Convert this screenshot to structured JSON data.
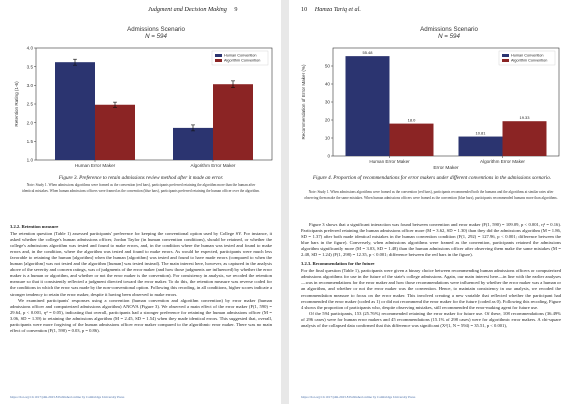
{
  "left_page": {
    "running_head": "Judgment and Decision Making",
    "page_number": "9",
    "figure_title": "Admissions Scenario",
    "figure_n": "N = 594",
    "caption": "Figure 3. Preference to retain admissions review method after it made an error.",
    "note": "Note: Study 1. When admissions algorithms were framed as the convention (red bars), participants preferred retaining the algorithm more than the human after identical mistakes. When human admissions officers were framed as the convention (blue bars), participants preferred retaining the human officer over the algorithm.",
    "section_heading": "3.2.2. Retention measure",
    "paragraphs": [
      "The retention question (Table 1) assessed participants' preference for keeping the conventional option used by College SY. For instance, it asked whether the college's human admissions officer, Jordan Taylor (in human convention conditions), should be retained, or whether the college's admissions algorithm was tested and found to make errors, and, in the condition where the human was tested and found to make errors and, in the condition, where the algorithm was tested and found to make errors. As would be expected, participants were much less favorable to retaining the human [algorithm] when the human [algorithm] was tested and found to have made errors (compared to when the human [algorithm] was not tested and the algorithm [human] was tested instead). The main interest here, however, as captured in the analysis above of the severity and concern ratings, was of judgments of the error maker (and how those judgments are influenced) by whether the error maker is a human or algorithm, and whether or not the error maker is the convention). For consistency in analysis, we recoded the retention measure so that it consistently reflected a judgment directed toward the error maker. To do this, the retention measure was reverse coded for the conditions in which the error was made by the non-conventional option. Following this recoding, in all conditions, higher scores indicate a stronger tendency to retain the error maker, despite it having been observed to make errors.",
      "We examined participants' responses using a convention (human convention and algorithm convention) by error maker (human admissions officer and computerized admissions algorithm) ANOVA (Figure 3). We observed a main effect of the error maker (F(1, 590) = 29.64, p < 0.001, η² = 0.05), indicating that overall, participants had a stronger preference for retaining the human admissions officer (M = 3.06, SD = 1.39) to retaining the admissions algorithm (M = 2.45, SD = 1.54) when they made identical errors. This suggested that, overall, participants were more forgiving of the human admissions officer error maker compared to the algorithmic error maker. There was no main effect of convention (F(1, 590) = 0.03, p = 0.86)."
    ],
    "footer": "https://doi.org/10.1017/jdm.2023.8 Published online by Cambridge University Press"
  },
  "right_page": {
    "page_number": "10",
    "running_head": "Hamza Tariq et al.",
    "figure_title": "Admissions Scenario",
    "figure_n": "N = 594",
    "caption": "Figure 4. Proportion of recommendations for error makers under different conventions in the admissions scenario.",
    "note": "Note: Study 1. When admissions algorithms were framed as the convention (red bars), participants recommended both the humans and the algorithms at similar rates after observing them make the same mistakes. When human admissions officers were framed as the convention (blue bars), participants recommended humans more than algorithms.",
    "paragraphs": [
      "Figure 3 shows that a significant interaction was found between convention and error maker (F(1, 590) = 109.09, p < 0.001, η² = 0.16). Participants preferred retaining the human admissions officer more (M = 3.62, SD = 1.30) than they did the admissions algorithm (M = 1.86, SD = 1.37) after both made identical mistakes in the human convention condition (F(1, 292) = 127.96, p < 0.001; difference between the blue bars in the figure). Conversely, when admissions algorithms were framed as the convention, participants retained the admissions algorithm significantly more (M = 3.03, SD = 1.48) than the human admissions officer after observing them make the same mistakes (M = 2.48, SD = 1.24) (F(1, 298) = 12.35, p < 0.001; difference between the red bars in the figure)."
    ],
    "section_heading": "3.2.3. Recommendation for the future",
    "paragraphs2": [
      "For the final question (Table 1), participants were given a binary choice between recommending human admissions officers or computerized admissions algorithms for use in the future of the state's college admissions. Again, our main interest here—in line with the earlier analyses—was in recommendations for the error maker and how those recommendations were influenced by whether the error maker was a human or an algorithm, and whether or not the error maker was the convention. Hence, to maintain consistency in our analysis, we recoded the recommendation measure to focus on the error maker. This involved creating a new variable that reflected whether the participant had recommended the error maker (coded as 1) or did not recommend the error maker for the future (coded as 0). Following this recoding, Figure 4 shows the proportion of participants who, despite observing mistakes, still recommended the error-making agent for future use.",
      "Of the 594 participants, 153 (25.76%) recommended retaining the error maker for future use. Of these, 108 recommendations (36.49% of 296 cases) were for human error makers and 45 recommendations (15.1% of 298 cases) were for algorithmic error makers. A chi-square analysis of the collapsed data confirmed that this difference was significant (X²(1, N = 594) = 35.51, p < 0.001),"
    ],
    "footer": "https://doi.org/10.1017/jdm.2023.8 Published online by Cambridge University Press"
  },
  "chart_data": [
    {
      "type": "bar",
      "title": "Admissions Scenario",
      "subtitle": "N = 594",
      "categories": [
        "Human Error Maker",
        "Algorithm Error Maker"
      ],
      "series": [
        {
          "name": "Human Convention",
          "values": [
            3.62,
            1.86
          ],
          "color": "#2b3470"
        },
        {
          "name": "Algorithm Convention",
          "values": [
            2.48,
            3.03
          ],
          "color": "#8b2424"
        }
      ],
      "errors": [
        [
          0.08,
          0.08
        ],
        [
          0.07,
          0.09
        ]
      ],
      "xlabel": "",
      "ylabel": "Retention Rating (1-6)",
      "ylim": [
        1.0,
        4.0
      ],
      "yticks": [
        "1.0",
        "1.5",
        "2.0",
        "2.5",
        "3.0",
        "3.5",
        "4.0"
      ],
      "grid": false,
      "legend": "top-right"
    },
    {
      "type": "bar",
      "title": "Admissions Scenario",
      "subtitle": "N = 594",
      "categories": [
        "Human Error Maker",
        "Algorithm Error Maker"
      ],
      "series": [
        {
          "name": "Human Convention",
          "values": [
            55.48,
            10.81
          ],
          "color": "#2b3470"
        },
        {
          "name": "Algorithm Convention",
          "values": [
            18.0,
            19.33
          ],
          "color": "#8b2424"
        }
      ],
      "value_labels": [
        [
          "55.48",
          "10.81"
        ],
        [
          "18.0",
          "19.33"
        ]
      ],
      "xlabel": "Error Maker",
      "ylabel": "Recommendation of Error Maker (%)",
      "ylim": [
        0,
        60
      ],
      "yticks": [
        "0",
        "10",
        "20",
        "30",
        "40",
        "50"
      ],
      "grid": false,
      "legend": "top-right"
    }
  ]
}
